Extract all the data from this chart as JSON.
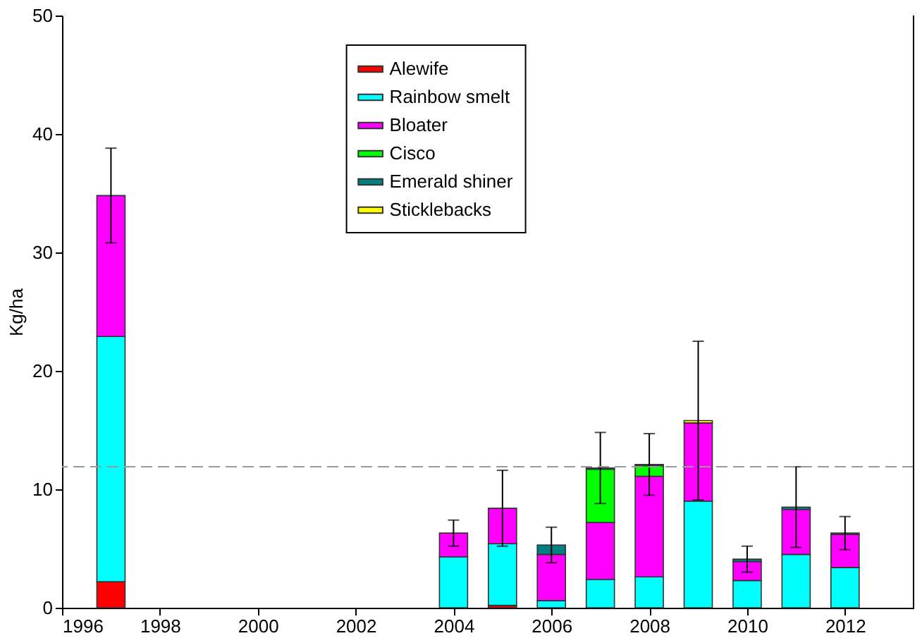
{
  "chart_data": {
    "type": "bar",
    "stacked": true,
    "ylabel": "Kg/ha",
    "x": [
      1997,
      2004,
      2005,
      2006,
      2007,
      2008,
      2009,
      2010,
      2011,
      2012
    ],
    "xlim": [
      1996,
      2013.4
    ],
    "xticks": [
      1996,
      1998,
      2000,
      2002,
      2004,
      2006,
      2008,
      2010,
      2012
    ],
    "ylim": [
      0,
      50
    ],
    "yticks": [
      0,
      10,
      20,
      30,
      40,
      50
    ],
    "series": [
      {
        "name": "Alewife",
        "color": "#ff0000",
        "values": [
          2.2,
          null,
          0.2,
          null,
          null,
          null,
          null,
          null,
          null,
          null
        ]
      },
      {
        "name": "Rainbow smelt",
        "color": "#00ffff",
        "values": [
          20.7,
          4.3,
          5.2,
          0.6,
          2.4,
          2.6,
          9.0,
          2.3,
          4.5,
          3.4
        ]
      },
      {
        "name": "Bloater",
        "color": "#ff00ff",
        "values": [
          11.9,
          2.0,
          3.0,
          3.9,
          4.8,
          8.5,
          6.6,
          1.6,
          3.8,
          2.8
        ],
        "errors": [
          4.0,
          1.1,
          3.2,
          null,
          null,
          null,
          null,
          null,
          null,
          null
        ]
      },
      {
        "name": "Cisco",
        "color": "#00ff00",
        "values": [
          null,
          null,
          null,
          null,
          4.5,
          0.9,
          null,
          null,
          null,
          null
        ]
      },
      {
        "name": "Emerald shiner",
        "color": "#008080",
        "values": [
          null,
          null,
          null,
          0.8,
          0.1,
          null,
          null,
          0.2,
          0.2,
          0.1
        ],
        "errors": [
          null,
          null,
          null,
          1.5,
          3.0,
          null,
          null,
          1.1,
          3.4,
          1.4
        ]
      },
      {
        "name": "Sticklebacks",
        "color": "#ffff00",
        "values": [
          null,
          null,
          null,
          null,
          null,
          0.1,
          0.2,
          null,
          null,
          null
        ],
        "errors": [
          null,
          null,
          null,
          null,
          null,
          2.6,
          6.7,
          null,
          null,
          null
        ]
      }
    ],
    "ref_lines": [
      {
        "axis": "y",
        "value": 11.9,
        "line_style": "dashed",
        "color": "#999999"
      }
    ],
    "grid": false,
    "legend": "top"
  }
}
